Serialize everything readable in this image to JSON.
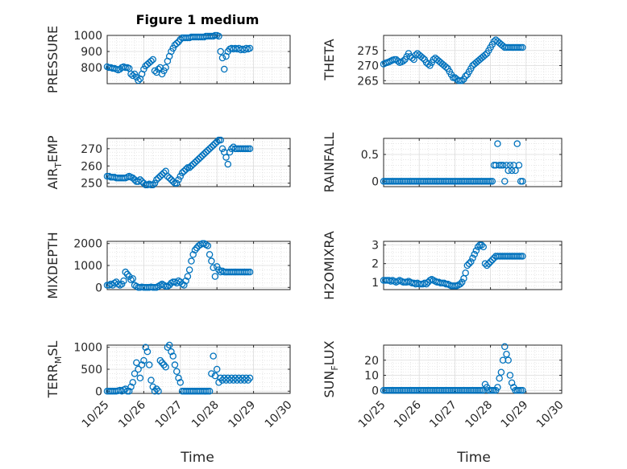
{
  "figure": {
    "title": "Figure 1 medium",
    "marker_color": "#0072BD",
    "grid": true,
    "minor_grid": true,
    "x_axis_label": "Time",
    "x_ticks": [
      "10/25",
      "10/26",
      "10/27",
      "10/28",
      "10/29",
      "10/30"
    ]
  },
  "chart_data": [
    {
      "type": "scatter",
      "ylabel": "PRESSURE",
      "title": "Figure 1 medium",
      "xlim": [
        0,
        5
      ],
      "ylim": [
        700,
        1000
      ],
      "yticks": [
        800,
        900,
        1000
      ],
      "x": [
        0,
        0.05,
        0.1,
        0.15,
        0.2,
        0.25,
        0.3,
        0.35,
        0.4,
        0.45,
        0.5,
        0.55,
        0.6,
        0.65,
        0.7,
        0.75,
        0.8,
        0.85,
        0.9,
        0.95,
        1.0,
        1.05,
        1.1,
        1.15,
        1.2,
        1.25,
        1.3,
        1.35,
        1.4,
        1.45,
        1.5,
        1.55,
        1.6,
        1.65,
        1.7,
        1.75,
        1.8,
        1.85,
        1.9,
        1.95,
        2.0,
        2.05,
        2.1,
        2.15,
        2.2,
        2.25,
        2.3,
        2.35,
        2.4,
        2.45,
        2.5,
        2.55,
        2.6,
        2.65,
        2.7,
        2.75,
        2.8,
        2.85,
        2.9,
        2.95,
        3.0,
        3.05,
        3.1,
        3.15,
        3.2,
        3.25,
        3.3,
        3.35,
        3.4,
        3.45,
        3.5,
        3.55,
        3.6,
        3.65,
        3.7,
        3.75,
        3.8,
        3.85,
        3.9
      ],
      "y": [
        805,
        800,
        800,
        795,
        795,
        790,
        785,
        790,
        800,
        805,
        800,
        800,
        795,
        760,
        750,
        760,
        740,
        720,
        730,
        760,
        790,
        810,
        820,
        830,
        840,
        850,
        780,
        770,
        790,
        800,
        760,
        780,
        800,
        840,
        870,
        900,
        920,
        940,
        950,
        960,
        975,
        985,
        985,
        985,
        985,
        985,
        990,
        990,
        990,
        990,
        990,
        990,
        990,
        990,
        995,
        995,
        995,
        995,
        995,
        1000,
        1000,
        995,
        900,
        860,
        790,
        870,
        900,
        915,
        920,
        915,
        920,
        915,
        920,
        910,
        915,
        910,
        920,
        915,
        920
      ]
    },
    {
      "type": "scatter",
      "ylabel": "THETA",
      "xlim": [
        0,
        5
      ],
      "ylim": [
        264,
        280
      ],
      "yticks": [
        265,
        270,
        275
      ],
      "x": [
        0,
        0.05,
        0.1,
        0.15,
        0.2,
        0.25,
        0.3,
        0.35,
        0.4,
        0.45,
        0.5,
        0.55,
        0.6,
        0.65,
        0.7,
        0.75,
        0.8,
        0.85,
        0.9,
        0.95,
        1.0,
        1.05,
        1.1,
        1.15,
        1.2,
        1.25,
        1.3,
        1.35,
        1.4,
        1.45,
        1.5,
        1.55,
        1.6,
        1.65,
        1.7,
        1.75,
        1.8,
        1.85,
        1.9,
        1.95,
        2.0,
        2.05,
        2.1,
        2.15,
        2.2,
        2.25,
        2.3,
        2.35,
        2.4,
        2.45,
        2.5,
        2.55,
        2.6,
        2.65,
        2.7,
        2.75,
        2.8,
        2.85,
        2.9,
        2.95,
        3.0,
        3.05,
        3.1,
        3.15,
        3.2,
        3.25,
        3.3,
        3.35,
        3.4,
        3.45,
        3.5,
        3.55,
        3.6,
        3.65,
        3.7,
        3.75,
        3.8,
        3.85,
        3.9
      ],
      "y": [
        270.5,
        270.8,
        271,
        271.2,
        271.5,
        271.8,
        272,
        272,
        271.5,
        271,
        271.2,
        271.5,
        272,
        273,
        274,
        273,
        272.5,
        272,
        273.5,
        274,
        273.5,
        273,
        272.5,
        272,
        271,
        270.5,
        270,
        271,
        272,
        272.5,
        272,
        271.5,
        271,
        270.5,
        270,
        269.5,
        269,
        268,
        267,
        266,
        266,
        265.5,
        265,
        265,
        265,
        265.5,
        266.5,
        267,
        268,
        269,
        270,
        270.5,
        271,
        271.5,
        272,
        272.5,
        273,
        273.5,
        274,
        275,
        276,
        277,
        278,
        278.5,
        278,
        277.5,
        277,
        276.5,
        276,
        276,
        276,
        276,
        276,
        276,
        276,
        276,
        276,
        276,
        276
      ]
    },
    {
      "type": "scatter",
      "ylabel": "AIR_TEMP",
      "xlim": [
        0,
        5
      ],
      "ylim": [
        248,
        276
      ],
      "yticks": [
        250,
        260,
        270
      ],
      "x": [
        0,
        0.05,
        0.1,
        0.15,
        0.2,
        0.25,
        0.3,
        0.35,
        0.4,
        0.45,
        0.5,
        0.55,
        0.6,
        0.65,
        0.7,
        0.75,
        0.8,
        0.85,
        0.9,
        0.95,
        1.0,
        1.05,
        1.1,
        1.15,
        1.2,
        1.25,
        1.3,
        1.35,
        1.4,
        1.45,
        1.5,
        1.55,
        1.6,
        1.65,
        1.7,
        1.75,
        1.8,
        1.85,
        1.9,
        1.95,
        2.0,
        2.05,
        2.1,
        2.15,
        2.2,
        2.25,
        2.3,
        2.35,
        2.4,
        2.45,
        2.5,
        2.55,
        2.6,
        2.65,
        2.7,
        2.75,
        2.8,
        2.85,
        2.9,
        2.95,
        3.0,
        3.05,
        3.1,
        3.15,
        3.2,
        3.25,
        3.3,
        3.35,
        3.4,
        3.45,
        3.5,
        3.55,
        3.6,
        3.65,
        3.7,
        3.75,
        3.8,
        3.85,
        3.9
      ],
      "y": [
        254,
        254,
        253.5,
        253.5,
        253.5,
        253,
        253,
        253,
        253,
        253,
        253,
        253.5,
        254,
        253.5,
        253,
        252,
        251,
        251,
        252,
        251,
        250,
        249,
        249,
        249.5,
        249,
        249,
        250,
        252,
        253,
        254,
        255,
        256,
        257,
        254,
        253,
        252,
        251,
        250,
        250,
        252,
        254,
        256,
        257,
        258,
        259,
        259,
        260,
        261,
        262,
        263,
        264,
        265,
        266,
        267,
        268,
        269,
        270,
        271,
        272,
        273,
        274,
        275,
        275,
        270,
        268,
        265,
        261,
        268,
        270,
        271,
        270,
        270,
        270,
        270,
        270,
        270,
        270,
        270,
        270
      ]
    },
    {
      "type": "scatter",
      "ylabel": "RAINFALL",
      "xlim": [
        0,
        5
      ],
      "ylim": [
        -0.1,
        0.8
      ],
      "yticks": [
        0,
        0.5
      ],
      "x": [
        0,
        0.05,
        0.1,
        0.15,
        0.2,
        0.25,
        0.3,
        0.35,
        0.4,
        0.45,
        0.5,
        0.55,
        0.6,
        0.65,
        0.7,
        0.75,
        0.8,
        0.85,
        0.9,
        0.95,
        1.0,
        1.05,
        1.1,
        1.15,
        1.2,
        1.25,
        1.3,
        1.35,
        1.4,
        1.45,
        1.5,
        1.55,
        1.6,
        1.65,
        1.7,
        1.75,
        1.8,
        1.85,
        1.9,
        1.95,
        2.0,
        2.05,
        2.1,
        2.15,
        2.2,
        2.25,
        2.3,
        2.35,
        2.4,
        2.45,
        2.5,
        2.55,
        2.6,
        2.65,
        2.7,
        2.75,
        2.8,
        2.85,
        2.9,
        2.95,
        3.0,
        3.05,
        3.1,
        3.15,
        3.2,
        3.25,
        3.3,
        3.35,
        3.4,
        3.45,
        3.5,
        3.55,
        3.6,
        3.65,
        3.7,
        3.75,
        3.8,
        3.85,
        3.9
      ],
      "y": [
        0,
        0,
        0,
        0,
        0,
        0,
        0,
        0,
        0,
        0,
        0,
        0,
        0,
        0,
        0,
        0,
        0,
        0,
        0,
        0,
        0,
        0,
        0,
        0,
        0,
        0,
        0,
        0,
        0,
        0,
        0,
        0,
        0,
        0,
        0,
        0,
        0,
        0,
        0,
        0,
        0,
        0,
        0,
        0,
        0,
        0,
        0,
        0,
        0,
        0,
        0,
        0,
        0,
        0,
        0,
        0,
        0,
        0,
        0,
        0,
        0,
        0,
        0.3,
        0.3,
        0.7,
        0.3,
        0.3,
        0.3,
        0,
        0.3,
        0.2,
        0.3,
        0.2,
        0.3,
        0.2,
        0.7,
        0.3,
        0,
        0
      ]
    },
    {
      "type": "scatter",
      "ylabel": "MIXDEPTH",
      "xlim": [
        0,
        5
      ],
      "ylim": [
        -100,
        2100
      ],
      "yticks": [
        0,
        1000,
        2000
      ],
      "x": [
        0,
        0.05,
        0.1,
        0.15,
        0.2,
        0.25,
        0.3,
        0.35,
        0.4,
        0.45,
        0.5,
        0.55,
        0.6,
        0.65,
        0.7,
        0.75,
        0.8,
        0.85,
        0.9,
        0.95,
        1.0,
        1.05,
        1.1,
        1.15,
        1.2,
        1.25,
        1.3,
        1.35,
        1.4,
        1.45,
        1.5,
        1.55,
        1.6,
        1.65,
        1.7,
        1.75,
        1.8,
        1.85,
        1.9,
        1.95,
        2.0,
        2.05,
        2.1,
        2.15,
        2.2,
        2.25,
        2.3,
        2.35,
        2.4,
        2.45,
        2.5,
        2.55,
        2.6,
        2.65,
        2.7,
        2.75,
        2.8,
        2.85,
        2.9,
        2.95,
        3.0,
        3.05,
        3.1,
        3.15,
        3.2,
        3.25,
        3.3,
        3.35,
        3.4,
        3.45,
        3.5,
        3.55,
        3.6,
        3.65,
        3.7,
        3.75,
        3.8,
        3.85,
        3.9
      ],
      "y": [
        100,
        100,
        150,
        100,
        200,
        250,
        150,
        100,
        150,
        300,
        700,
        600,
        500,
        350,
        400,
        100,
        50,
        0,
        0,
        20,
        0,
        0,
        0,
        0,
        20,
        0,
        0,
        0,
        50,
        100,
        150,
        100,
        50,
        50,
        100,
        200,
        250,
        250,
        200,
        300,
        250,
        150,
        100,
        300,
        500,
        800,
        1200,
        1500,
        1700,
        1800,
        1900,
        1950,
        2000,
        2000,
        1950,
        1900,
        1500,
        1200,
        900,
        500,
        950,
        800,
        700,
        750,
        700,
        700,
        700,
        700,
        700,
        700,
        700,
        700,
        700,
        700,
        700,
        700,
        700,
        700,
        700
      ]
    },
    {
      "type": "scatter",
      "ylabel": "H2OMIXRA",
      "xlim": [
        0,
        5
      ],
      "ylim": [
        0.6,
        3.2
      ],
      "yticks": [
        1,
        2,
        3
      ],
      "x": [
        0,
        0.05,
        0.1,
        0.15,
        0.2,
        0.25,
        0.3,
        0.35,
        0.4,
        0.45,
        0.5,
        0.55,
        0.6,
        0.65,
        0.7,
        0.75,
        0.8,
        0.85,
        0.9,
        0.95,
        1.0,
        1.05,
        1.1,
        1.15,
        1.2,
        1.25,
        1.3,
        1.35,
        1.4,
        1.45,
        1.5,
        1.55,
        1.6,
        1.65,
        1.7,
        1.75,
        1.8,
        1.85,
        1.9,
        1.95,
        2.0,
        2.05,
        2.1,
        2.15,
        2.2,
        2.25,
        2.3,
        2.35,
        2.4,
        2.45,
        2.5,
        2.55,
        2.6,
        2.65,
        2.7,
        2.75,
        2.8,
        2.85,
        2.9,
        2.95,
        3.0,
        3.05,
        3.1,
        3.15,
        3.2,
        3.25,
        3.3,
        3.35,
        3.4,
        3.45,
        3.5,
        3.55,
        3.6,
        3.65,
        3.7,
        3.75,
        3.8,
        3.85,
        3.9
      ],
      "y": [
        1.1,
        1.1,
        1.1,
        1.1,
        1.05,
        1.1,
        1.05,
        1.0,
        1.05,
        1.1,
        1.05,
        1.0,
        1.0,
        1.0,
        1.05,
        1.0,
        0.95,
        0.95,
        0.9,
        0.95,
        0.9,
        0.9,
        0.9,
        0.95,
        0.9,
        1.0,
        1.1,
        1.15,
        1.1,
        1.05,
        1.0,
        1.0,
        0.95,
        0.95,
        0.95,
        0.9,
        0.9,
        0.85,
        0.8,
        0.8,
        0.8,
        0.8,
        0.85,
        0.9,
        1.0,
        1.2,
        1.5,
        1.9,
        2.0,
        2.1,
        2.3,
        2.5,
        2.7,
        2.9,
        3.0,
        3.0,
        2.9,
        2.0,
        1.9,
        2.0,
        2.1,
        2.2,
        2.3,
        2.4,
        2.4,
        2.4,
        2.4,
        2.4,
        2.4,
        2.4,
        2.4,
        2.4,
        2.4,
        2.4,
        2.4,
        2.4,
        2.4,
        2.4,
        2.4
      ]
    },
    {
      "type": "scatter",
      "ylabel": "TERR_MSL",
      "xlim": [
        0,
        5
      ],
      "ylim": [
        -50,
        1050
      ],
      "yticks": [
        0,
        500,
        1000
      ],
      "x": [
        0,
        0.05,
        0.1,
        0.15,
        0.2,
        0.25,
        0.3,
        0.35,
        0.4,
        0.45,
        0.5,
        0.55,
        0.6,
        0.65,
        0.7,
        0.75,
        0.8,
        0.85,
        0.9,
        0.95,
        1.0,
        1.05,
        1.1,
        1.15,
        1.2,
        1.25,
        1.3,
        1.35,
        1.4,
        1.45,
        1.5,
        1.55,
        1.6,
        1.65,
        1.7,
        1.75,
        1.8,
        1.85,
        1.9,
        1.95,
        2.0,
        2.05,
        2.1,
        2.15,
        2.2,
        2.25,
        2.3,
        2.35,
        2.4,
        2.45,
        2.5,
        2.55,
        2.6,
        2.65,
        2.7,
        2.75,
        2.8,
        2.85,
        2.9,
        2.95,
        3.0,
        3.05,
        3.1,
        3.15,
        3.2,
        3.25,
        3.3,
        3.35,
        3.4,
        3.45,
        3.5,
        3.55,
        3.6,
        3.65,
        3.7,
        3.75,
        3.8,
        3.85,
        3.9
      ],
      "y": [
        0,
        0,
        0,
        0,
        0,
        0,
        10,
        20,
        0,
        30,
        50,
        0,
        0,
        100,
        200,
        400,
        650,
        500,
        300,
        600,
        700,
        1000,
        900,
        600,
        250,
        100,
        0,
        50,
        0,
        700,
        650,
        600,
        550,
        1000,
        1050,
        900,
        800,
        600,
        450,
        300,
        200,
        0,
        0,
        0,
        0,
        0,
        0,
        0,
        0,
        0,
        0,
        0,
        0,
        0,
        0,
        0,
        0,
        400,
        800,
        350,
        500,
        200,
        300,
        250,
        300,
        250,
        300,
        250,
        300,
        250,
        300,
        250,
        300,
        250,
        300,
        250,
        300,
        250,
        300
      ]
    },
    {
      "type": "scatter",
      "ylabel": "SUN_FLUX",
      "xlim": [
        0,
        5
      ],
      "ylim": [
        -2,
        30
      ],
      "yticks": [
        0,
        10,
        20
      ],
      "x": [
        0,
        0.05,
        0.1,
        0.15,
        0.2,
        0.25,
        0.3,
        0.35,
        0.4,
        0.45,
        0.5,
        0.55,
        0.6,
        0.65,
        0.7,
        0.75,
        0.8,
        0.85,
        0.9,
        0.95,
        1.0,
        1.05,
        1.1,
        1.15,
        1.2,
        1.25,
        1.3,
        1.35,
        1.4,
        1.45,
        1.5,
        1.55,
        1.6,
        1.65,
        1.7,
        1.75,
        1.8,
        1.85,
        1.9,
        1.95,
        2.0,
        2.05,
        2.1,
        2.15,
        2.2,
        2.25,
        2.3,
        2.35,
        2.4,
        2.45,
        2.5,
        2.55,
        2.6,
        2.65,
        2.7,
        2.75,
        2.8,
        2.85,
        2.9,
        2.95,
        3.0,
        3.05,
        3.1,
        3.15,
        3.2,
        3.25,
        3.3,
        3.35,
        3.4,
        3.45,
        3.5,
        3.55,
        3.6,
        3.65,
        3.7,
        3.75,
        3.8,
        3.85,
        3.9
      ],
      "y": [
        0,
        0,
        0,
        0,
        0,
        0,
        0,
        0,
        0,
        0,
        0,
        0,
        0,
        0,
        0,
        0,
        0,
        0,
        0,
        0,
        0,
        0,
        0,
        0,
        0,
        0,
        0,
        0,
        0,
        0,
        0,
        0,
        0,
        0,
        0,
        0,
        0,
        0,
        0,
        0,
        0,
        0,
        0,
        0,
        0,
        0,
        0,
        0,
        0,
        0,
        0,
        0,
        0,
        0,
        0,
        0,
        0,
        4,
        2,
        0,
        0,
        0,
        0,
        0,
        2,
        8,
        12,
        20,
        29,
        24,
        20,
        10,
        5,
        2,
        0,
        0,
        0,
        0,
        0
      ]
    }
  ]
}
